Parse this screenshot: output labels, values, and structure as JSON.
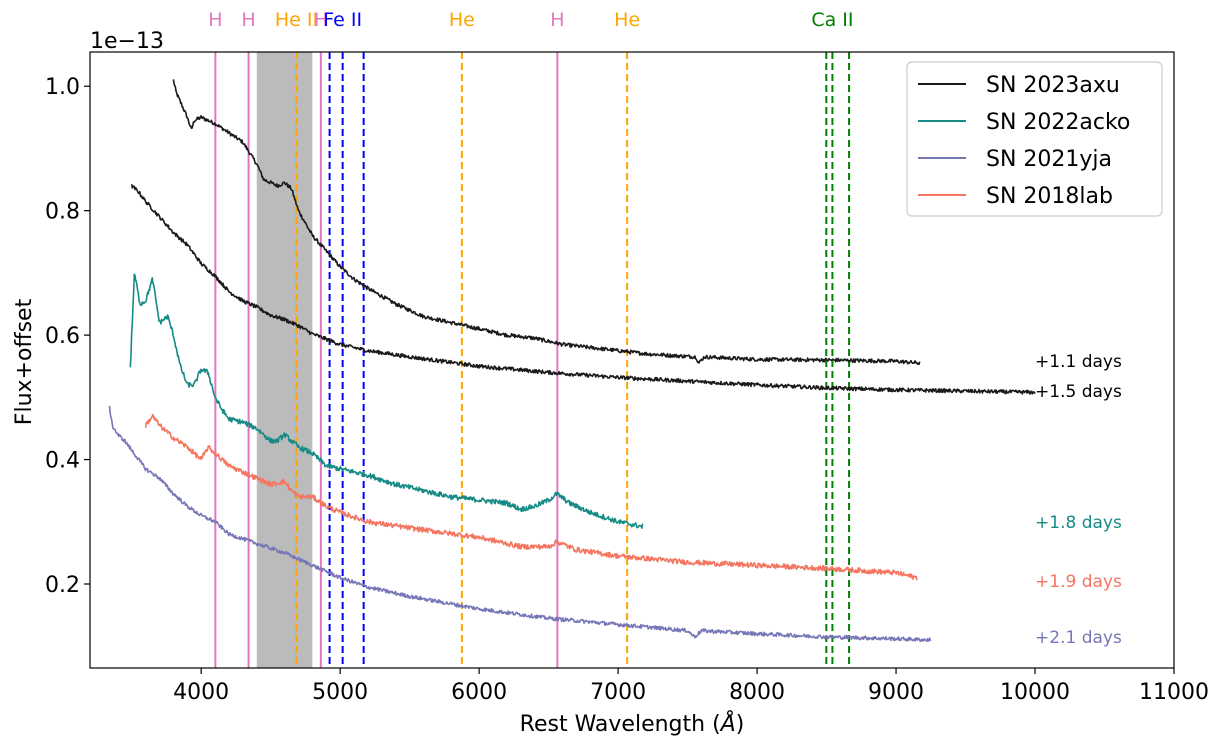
{
  "chart_data": {
    "type": "line",
    "xlabel": "Rest Wavelength (",
    "xlabel_unit": "Å",
    "xlabel_close": ")",
    "ylabel": "Flux+offset",
    "offset_text": "1e−13",
    "xlim": [
      3200,
      11000
    ],
    "ylim": [
      0.065,
      1.055
    ],
    "xticks": [
      4000,
      5000,
      6000,
      7000,
      8000,
      9000,
      10000,
      11000
    ],
    "xtick_labels": [
      "4000",
      "5000",
      "6000",
      "7000",
      "8000",
      "9000",
      "10000",
      "11000"
    ],
    "yticks": [
      0.2,
      0.4,
      0.6,
      0.8,
      1.0
    ],
    "ytick_labels": [
      "0.2",
      "0.4",
      "0.6",
      "0.8",
      "1.0"
    ],
    "shaded_region": {
      "x": [
        4400,
        4800
      ],
      "color": "#bbbbbb"
    },
    "lines": [
      {
        "label": "H",
        "x": 4102,
        "color": "#e377c2",
        "style": "solid"
      },
      {
        "label": "H",
        "x": 4341,
        "color": "#e377c2",
        "style": "solid"
      },
      {
        "label": "He II",
        "x": 4686,
        "color": "#ffa500",
        "style": "dashed"
      },
      {
        "label": "H",
        "x": 4861,
        "color": "#e377c2",
        "style": "solid"
      },
      {
        "label": "",
        "x": 4924,
        "color": "#0000ff",
        "style": "dashed"
      },
      {
        "label": "Fe II",
        "x": 5018,
        "color": "#0000ff",
        "style": "dashed"
      },
      {
        "label": "",
        "x": 5169,
        "color": "#0000ff",
        "style": "dashed"
      },
      {
        "label": "He",
        "x": 5876,
        "color": "#ffa500",
        "style": "dashed"
      },
      {
        "label": "H",
        "x": 6563,
        "color": "#e377c2",
        "style": "solid"
      },
      {
        "label": "He",
        "x": 7065,
        "color": "#ffa500",
        "style": "dashed"
      },
      {
        "label": "",
        "x": 8498,
        "color": "#008000",
        "style": "dashed"
      },
      {
        "label": "Ca II",
        "x": 8542,
        "color": "#008000",
        "style": "dashed"
      },
      {
        "label": "",
        "x": 8662,
        "color": "#008000",
        "style": "dashed"
      }
    ],
    "series": [
      {
        "name": "SN 2023axu",
        "legend": true,
        "color": "#1a1a1a",
        "noise": 0.003,
        "x": [
          3800,
          3820,
          3850,
          3900,
          3930,
          3950,
          4000,
          4100,
          4200,
          4300,
          4400,
          4450,
          4500,
          4550,
          4600,
          4650,
          4700,
          4800,
          4900,
          5000,
          5100,
          5200,
          5400,
          5600,
          5800,
          6000,
          6200,
          6400,
          6600,
          6800,
          7000,
          7200,
          7400,
          7560,
          7580,
          7620,
          7800,
          8000,
          8500,
          9000,
          9170
        ],
        "y": [
          1.01,
          0.99,
          0.975,
          0.95,
          0.93,
          0.945,
          0.95,
          0.94,
          0.925,
          0.91,
          0.875,
          0.85,
          0.845,
          0.84,
          0.845,
          0.835,
          0.8,
          0.76,
          0.735,
          0.71,
          0.69,
          0.675,
          0.65,
          0.63,
          0.62,
          0.61,
          0.6,
          0.595,
          0.585,
          0.58,
          0.575,
          0.57,
          0.567,
          0.565,
          0.555,
          0.565,
          0.563,
          0.561,
          0.56,
          0.558,
          0.555
        ]
      },
      {
        "name": "SN 2023axu",
        "legend": false,
        "color": "#1a1a1a",
        "noise": 0.003,
        "x": [
          3500,
          3550,
          3600,
          3700,
          3800,
          3900,
          4000,
          4100,
          4200,
          4300,
          4400,
          4500,
          4600,
          4700,
          4800,
          5000,
          5200,
          5500,
          6000,
          6500,
          7000,
          7500,
          8000,
          8500,
          9000,
          9500,
          10000
        ],
        "y": [
          0.84,
          0.83,
          0.815,
          0.79,
          0.765,
          0.745,
          0.715,
          0.695,
          0.67,
          0.655,
          0.645,
          0.632,
          0.625,
          0.615,
          0.602,
          0.585,
          0.575,
          0.565,
          0.55,
          0.54,
          0.532,
          0.526,
          0.52,
          0.515,
          0.512,
          0.51,
          0.508
        ]
      },
      {
        "name": "SN 2022acko",
        "legend": true,
        "color": "#168b86",
        "noise": 0.004,
        "x": [
          3490,
          3500,
          3520,
          3560,
          3600,
          3650,
          3700,
          3760,
          3800,
          3850,
          3900,
          3950,
          4000,
          4050,
          4100,
          4150,
          4200,
          4300,
          4400,
          4450,
          4500,
          4550,
          4600,
          4650,
          4700,
          4800,
          4900,
          5000,
          5200,
          5400,
          5600,
          5800,
          6000,
          6200,
          6300,
          6400,
          6500,
          6560,
          6650,
          6800,
          7000,
          7180
        ],
        "y": [
          0.545,
          0.6,
          0.7,
          0.65,
          0.655,
          0.69,
          0.62,
          0.63,
          0.6,
          0.55,
          0.52,
          0.52,
          0.545,
          0.54,
          0.5,
          0.48,
          0.465,
          0.46,
          0.45,
          0.44,
          0.43,
          0.43,
          0.44,
          0.43,
          0.42,
          0.41,
          0.39,
          0.385,
          0.375,
          0.36,
          0.35,
          0.34,
          0.335,
          0.33,
          0.32,
          0.325,
          0.335,
          0.345,
          0.33,
          0.315,
          0.3,
          0.292
        ]
      },
      {
        "name": "SN 2021yja",
        "legend": true,
        "color": "#7777b8",
        "noise": 0.003,
        "x": [
          3340,
          3360,
          3400,
          3450,
          3500,
          3550,
          3600,
          3700,
          3800,
          3900,
          4000,
          4100,
          4200,
          4400,
          4600,
          4800,
          5000,
          5200,
          5500,
          6000,
          6500,
          7000,
          7500,
          7550,
          7600,
          8000,
          8500,
          9000,
          9250
        ],
        "y": [
          0.485,
          0.455,
          0.44,
          0.43,
          0.415,
          0.4,
          0.385,
          0.37,
          0.345,
          0.325,
          0.31,
          0.3,
          0.28,
          0.265,
          0.25,
          0.23,
          0.21,
          0.195,
          0.18,
          0.16,
          0.145,
          0.135,
          0.125,
          0.115,
          0.125,
          0.12,
          0.115,
          0.112,
          0.11
        ]
      },
      {
        "name": "SN 2018lab",
        "legend": true,
        "color": "#f47560",
        "noise": 0.004,
        "x": [
          3600,
          3650,
          3700,
          3800,
          3900,
          4000,
          4050,
          4100,
          4200,
          4300,
          4400,
          4500,
          4600,
          4650,
          4700,
          4800,
          4900,
          5000,
          5200,
          5500,
          6000,
          6300,
          6500,
          6560,
          6700,
          7000,
          7500,
          8000,
          8500,
          9000,
          9150
        ],
        "y": [
          0.455,
          0.47,
          0.455,
          0.435,
          0.42,
          0.4,
          0.42,
          0.41,
          0.39,
          0.38,
          0.37,
          0.36,
          0.365,
          0.35,
          0.34,
          0.34,
          0.325,
          0.315,
          0.3,
          0.29,
          0.275,
          0.26,
          0.26,
          0.268,
          0.255,
          0.245,
          0.235,
          0.23,
          0.225,
          0.218,
          0.21
        ]
      }
    ],
    "day_labels": [
      {
        "text": "+1.1 days",
        "y": 0.558,
        "color": "#000000"
      },
      {
        "text": "+1.5 days",
        "y": 0.51,
        "color": "#000000"
      },
      {
        "text": "+1.8 days",
        "y": 0.3,
        "color": "#168b86"
      },
      {
        "text": "+1.9 days",
        "y": 0.205,
        "color": "#f47560"
      },
      {
        "text": "+2.1 days",
        "y": 0.115,
        "color": "#7777b8"
      }
    ],
    "day_label_x": 10000,
    "legend_position": "top-right"
  }
}
